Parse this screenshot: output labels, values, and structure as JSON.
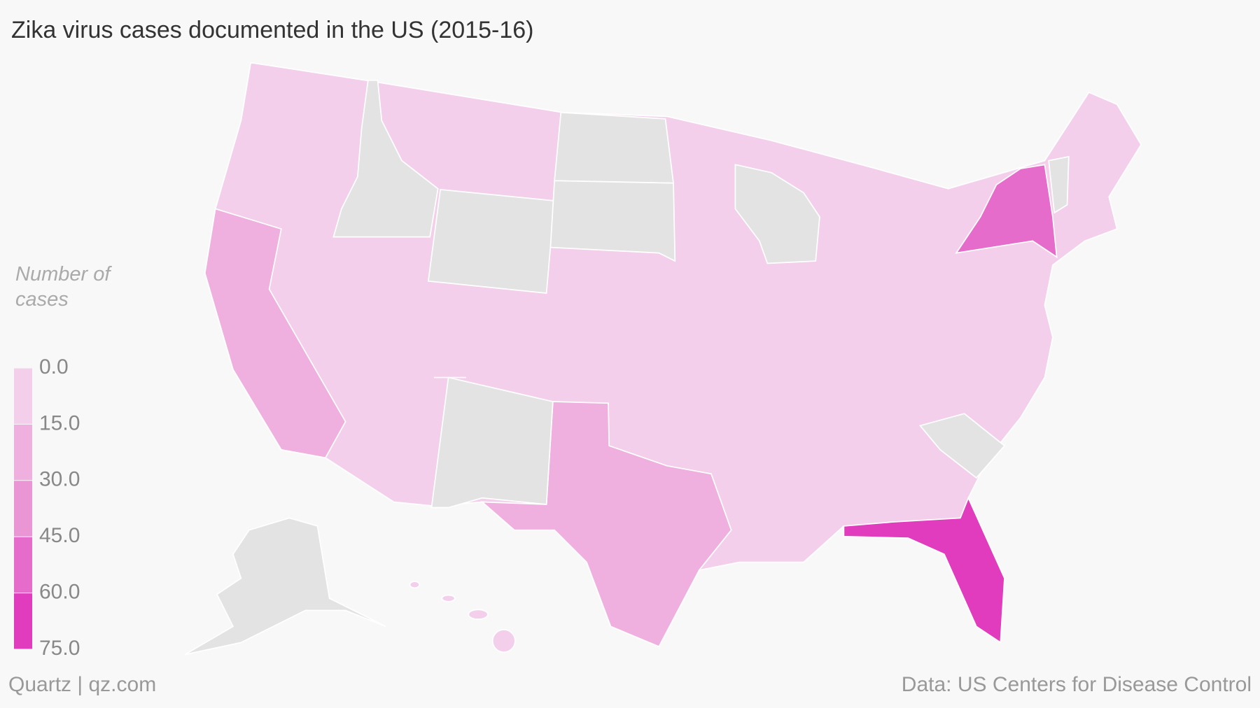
{
  "title": "Zika virus cases documented in the US (2015-16)",
  "legend": {
    "title": "Number of cases",
    "lim": [
      0,
      75
    ],
    "ticks": [
      {
        "value": 0,
        "label": "0.0"
      },
      {
        "value": 15,
        "label": "15.0"
      },
      {
        "value": 30,
        "label": "30.0"
      },
      {
        "value": 45,
        "label": "45.0"
      },
      {
        "value": 60,
        "label": "60.0"
      },
      {
        "value": 75,
        "label": "75.0"
      }
    ],
    "colors": [
      "#f3cfec",
      "#efb0df",
      "#ea95d4",
      "#e56cca",
      "#e03cbd"
    ],
    "no_data_color": "#e3e3e3"
  },
  "footer": {
    "source": "Quartz | qz.com",
    "credit": "Data: US Centers for Disease Control"
  }
}
